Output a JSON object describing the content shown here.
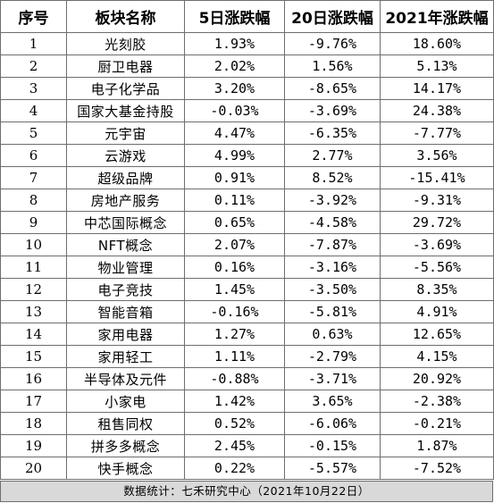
{
  "headers": [
    "序号",
    "板块名称",
    "5日涨跌幅",
    "20日涨跌幅",
    "2021年涨跌幅"
  ],
  "rows": [
    [
      "1",
      "光刻胶",
      "1.93%",
      "-9.76%",
      "18.60%"
    ],
    [
      "2",
      "厨卫电器",
      "2.02%",
      "1.56%",
      "5.13%"
    ],
    [
      "3",
      "电子化学品",
      "3.20%",
      "-8.65%",
      "14.17%"
    ],
    [
      "4",
      "国家大基金持股",
      "-0.03%",
      "-3.69%",
      "24.38%"
    ],
    [
      "5",
      "元宇宙",
      "4.47%",
      "-6.35%",
      "-7.77%"
    ],
    [
      "6",
      "云游戏",
      "4.99%",
      "2.77%",
      "3.56%"
    ],
    [
      "7",
      "超级品牌",
      "0.91%",
      "8.52%",
      "-15.41%"
    ],
    [
      "8",
      "房地产服务",
      "0.11%",
      "-3.92%",
      "-9.31%"
    ],
    [
      "9",
      "中芯国际概念",
      "0.65%",
      "-4.58%",
      "29.72%"
    ],
    [
      "10",
      "NFT概念",
      "2.07%",
      "-7.87%",
      "-3.69%"
    ],
    [
      "11",
      "物业管理",
      "0.16%",
      "-3.16%",
      "-5.56%"
    ],
    [
      "12",
      "电子竞技",
      "1.45%",
      "-3.50%",
      "8.35%"
    ],
    [
      "13",
      "智能音箱",
      "-0.16%",
      "-5.81%",
      "4.91%"
    ],
    [
      "14",
      "家用电器",
      "1.27%",
      "0.63%",
      "12.65%"
    ],
    [
      "15",
      "家用轻工",
      "1.11%",
      "-2.79%",
      "4.15%"
    ],
    [
      "16",
      "半导体及元件",
      "-0.88%",
      "-3.71%",
      "20.92%"
    ],
    [
      "17",
      "小家电",
      "1.42%",
      "3.65%",
      "-2.38%"
    ],
    [
      "18",
      "租售同权",
      "0.52%",
      "-6.06%",
      "-0.21%"
    ],
    [
      "19",
      "拼多多概念",
      "2.45%",
      "-0.15%",
      "1.87%"
    ],
    [
      "20",
      "快手概念",
      "0.22%",
      "-5.57%",
      "-7.52%"
    ]
  ],
  "footer": "数据统计：七禾研究中心（2021年10月22日）",
  "colors": {
    "border": "#6e6e6e",
    "footer_bg": "#d9d9d9",
    "text": "#000000"
  }
}
